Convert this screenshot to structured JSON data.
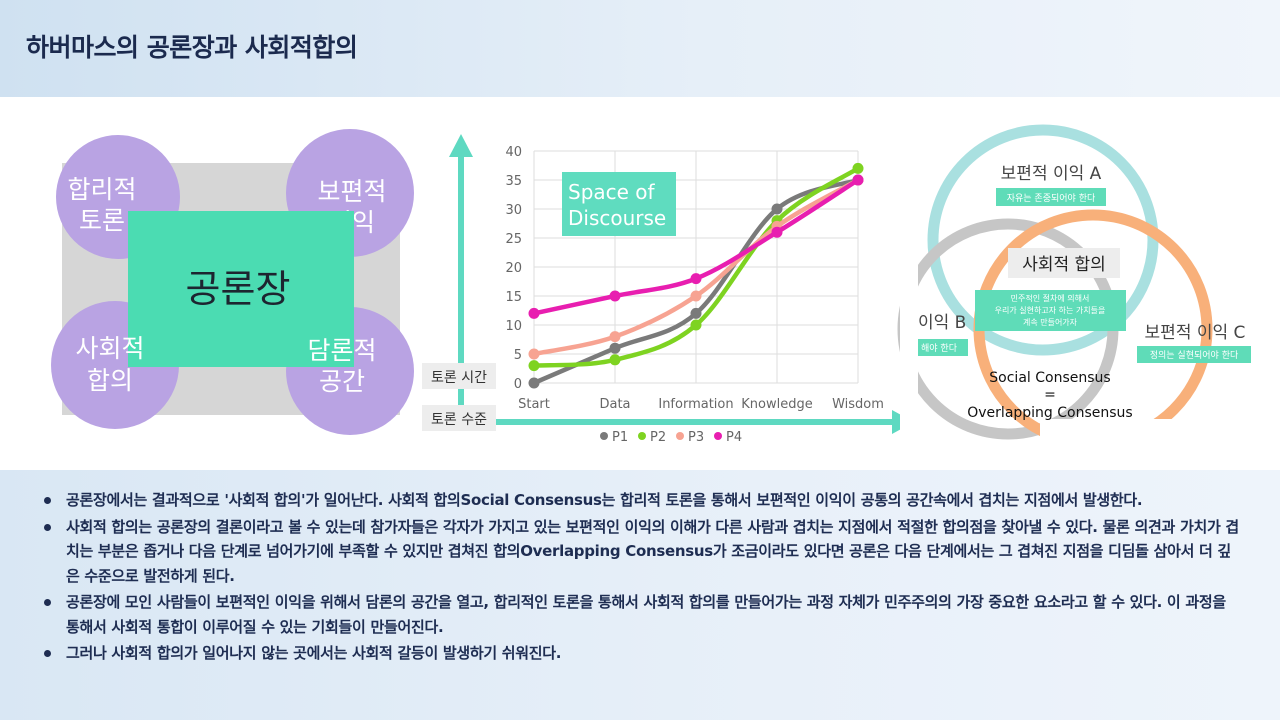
{
  "header": {
    "title": "하버마스의 공론장과 사회적합의"
  },
  "left_diagram": {
    "center": "공론장",
    "circles": [
      {
        "line1": "합리적",
        "line2": "토론"
      },
      {
        "line1": "보편적",
        "line2": "이익"
      },
      {
        "line1": "사회적",
        "line2": "합의"
      },
      {
        "line1": "담론적",
        "line2": "공간"
      }
    ],
    "colors": {
      "circle": "#b9a3e3",
      "center": "#4bdcb2",
      "square": "#d6d6d6"
    }
  },
  "axis_labels": {
    "vertical": "토론 시간",
    "horizontal": "토론 수준"
  },
  "chart_data": {
    "type": "line",
    "title": "Space of Discourse",
    "title_lines": [
      "Space of",
      "Discourse"
    ],
    "categories": [
      "Start",
      "Data",
      "Information",
      "Knowledge",
      "Wisdom"
    ],
    "ylim": [
      0,
      40
    ],
    "yticks": [
      0,
      5,
      10,
      15,
      20,
      25,
      30,
      35,
      40
    ],
    "grid": true,
    "legend": "bottom",
    "series": [
      {
        "name": "P1",
        "color": "#7a7a7a",
        "values": [
          0,
          6,
          12,
          30,
          35
        ]
      },
      {
        "name": "P2",
        "color": "#7ed321",
        "values": [
          3,
          4,
          10,
          28,
          37
        ]
      },
      {
        "name": "P3",
        "color": "#f7a392",
        "values": [
          5,
          8,
          15,
          27,
          35
        ]
      },
      {
        "name": "P4",
        "color": "#e81eb0",
        "values": [
          12,
          15,
          18,
          26,
          35
        ]
      }
    ]
  },
  "venn": {
    "a_title": "보편적 이익 A",
    "a_desc": "자유는 존중되어야 한다",
    "b_title": "이익 B",
    "b_desc": "해야 한다",
    "c_title": "보편적 이익 C",
    "c_desc": "정의는 실현되어야 한다",
    "center_title": "사회적 합의",
    "center_desc": [
      "민주적인 절차에 의해서",
      "우리가 실현하고자 하는 가치들을",
      "계속 만들어가자"
    ],
    "caption": [
      "Social Consensus",
      "=",
      "Overlapping Consensus"
    ],
    "colors": {
      "a": "#a9e0e0",
      "b": "#c6c6c6",
      "c": "#f8b07a",
      "label_bg": "#5fdcb8"
    }
  },
  "bullets": [
    "공론장에서는 결과적으로 '사회적 합의'가 일어난다. 사회적 합의Social Consensus는 합리적 토론을 통해서 보편적인 이익이 공통의 공간속에서 겹치는 지점에서 발생한다.",
    "사회적 합의는 공론장의 결론이라고 볼 수 있는데 참가자들은 각자가 가지고 있는 보편적인 이익의 이해가 다른 사람과 겹치는 지점에서 적절한 합의점을 찾아낼 수 있다. 물론 의견과 가치가 겹치는 부분은 좁거나 다음 단계로 넘어가기에 부족할 수 있지만 겹쳐진 합의Overlapping Consensus가 조금이라도 있다면 공론은 다음 단계에서는 그 겹쳐진 지점을 디딤돌 삼아서 더 깊은 수준으로 발전하게 된다.",
    "공론장에 모인 사람들이 보편적인 이익을 위해서 담론의 공간을 열고, 합리적인 토론을 통해서 사회적 합의를 만들어가는 과정 자체가 민주주의의 가장 중요한 요소라고 할 수 있다. 이 과정을 통해서 사회적 통합이 이루어질 수 있는 기회들이 만들어진다.",
    "그러나 사회적 합의가 일어나지 않는 곳에서는 사회적 갈등이 발생하기 쉬워진다."
  ]
}
